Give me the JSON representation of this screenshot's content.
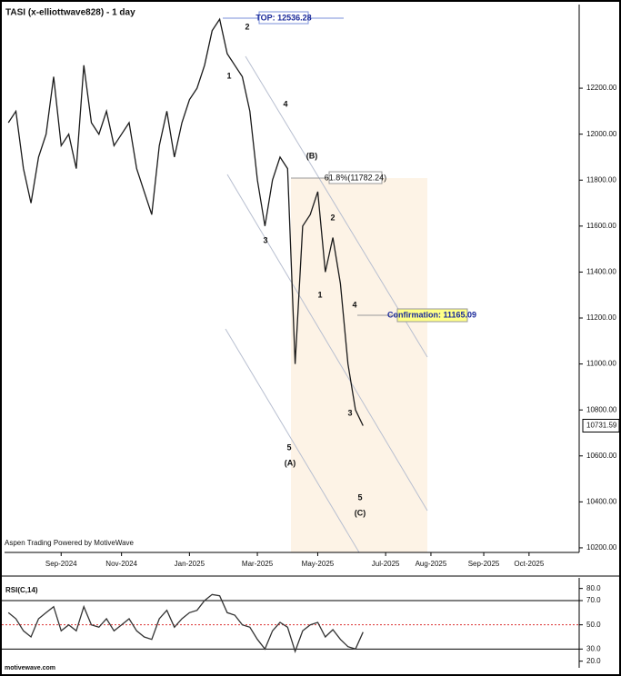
{
  "chart_data": [
    {
      "type": "line",
      "title": "TASI (x-elliottwave828) - 1 day",
      "categories": [
        null,
        null,
        null,
        null,
        null,
        null,
        null,
        "Sep-2024",
        null,
        null,
        null,
        null,
        null,
        null,
        null,
        "Nov-2024",
        null,
        null,
        null,
        null,
        null,
        null,
        null,
        null,
        "Jan-2025",
        null,
        null,
        null,
        null,
        null,
        null,
        null,
        null,
        "Mar-2025",
        null,
        null,
        null,
        null,
        null,
        null,
        null,
        "May-2025",
        null,
        null,
        null,
        null,
        null,
        null,
        null,
        null,
        "Jul-2025",
        null,
        null,
        null,
        null,
        null,
        "Aug-2025",
        null,
        null,
        null,
        null,
        null,
        null,
        "Sep-2025",
        null,
        null,
        null,
        null,
        null,
        "Oct-2025",
        null,
        null,
        null,
        null,
        null,
        null
      ],
      "series": [
        {
          "color": "#1a1a1a",
          "values": [
            12050,
            12100,
            11850,
            11700,
            11900,
            12000,
            12250,
            11950,
            12000,
            11850,
            12300,
            12050,
            12000,
            12100,
            11950,
            12000,
            12050,
            11850,
            11750,
            11650,
            11950,
            12100,
            11900,
            12050,
            12150,
            12200,
            12300,
            12450,
            12500,
            12350,
            12300,
            12250,
            12100,
            11800,
            11600,
            11800,
            11900,
            11850,
            11000,
            11600,
            11650,
            11750,
            11400,
            11550,
            11350,
            11000,
            10800,
            10731.59,
            null,
            null,
            null,
            null,
            null,
            null,
            null,
            null,
            null,
            null,
            null,
            null,
            null,
            null,
            null,
            null,
            null,
            null,
            null,
            null,
            null,
            null,
            null,
            null,
            null,
            null,
            null,
            null
          ]
        }
      ],
      "ylim": [
        10180,
        12564
      ],
      "yticks": [
        {
          "value": 10200,
          "label": "10200.00"
        },
        {
          "value": 10400,
          "label": "10400.00"
        },
        {
          "value": 10600,
          "label": "10600.00"
        },
        {
          "value": 10800,
          "label": "10800.00"
        },
        {
          "value": 11000,
          "label": "11000.00"
        },
        {
          "value": 11200,
          "label": "11200.00"
        },
        {
          "value": 11400,
          "label": "11400.00"
        },
        {
          "value": 11600,
          "label": "11600.00"
        },
        {
          "value": 11800,
          "label": "11800.00"
        },
        {
          "value": 12000,
          "label": "12000.00"
        },
        {
          "value": 12200,
          "label": "12200.00"
        }
      ],
      "last_price": 10731.59,
      "top_label": "TOP: 12536.28",
      "fib_label": "61.8%(11782.24)",
      "confirmation_label": "Confirmation: 11165.09",
      "annotations": [
        "2",
        "1",
        "4",
        "3",
        "5",
        "(A)",
        "(B)",
        "2",
        "1",
        "4",
        "3",
        "5",
        "(C)"
      ],
      "watermark": "Aspen Trading Powered by MotiveWave"
    },
    {
      "type": "line",
      "title": "RSI(C,14)",
      "series": [
        {
          "color": "#333333",
          "values": [
            60,
            55,
            45,
            40,
            55,
            60,
            65,
            45,
            50,
            45,
            65,
            50,
            48,
            55,
            45,
            50,
            55,
            45,
            40,
            38,
            55,
            62,
            48,
            55,
            60,
            62,
            70,
            75,
            74,
            60,
            58,
            50,
            48,
            38,
            30,
            45,
            52,
            48,
            28,
            45,
            50,
            52,
            40,
            46,
            38,
            32,
            30,
            44,
            null,
            null,
            null,
            null,
            null,
            null,
            null,
            null,
            null,
            null,
            null,
            null,
            null,
            null,
            null,
            null,
            null,
            null,
            null,
            null,
            null,
            null,
            null,
            null,
            null,
            null,
            null,
            null
          ]
        }
      ],
      "ylim": [
        16,
        88
      ],
      "yticks": [
        {
          "value": 20,
          "label": "20.0"
        },
        {
          "value": 30,
          "label": "30.0"
        },
        {
          "value": 50,
          "label": "50.0"
        },
        {
          "value": 70,
          "label": "70.0"
        },
        {
          "value": 80,
          "label": "80.0"
        }
      ],
      "footer": "motivewave.com"
    }
  ]
}
